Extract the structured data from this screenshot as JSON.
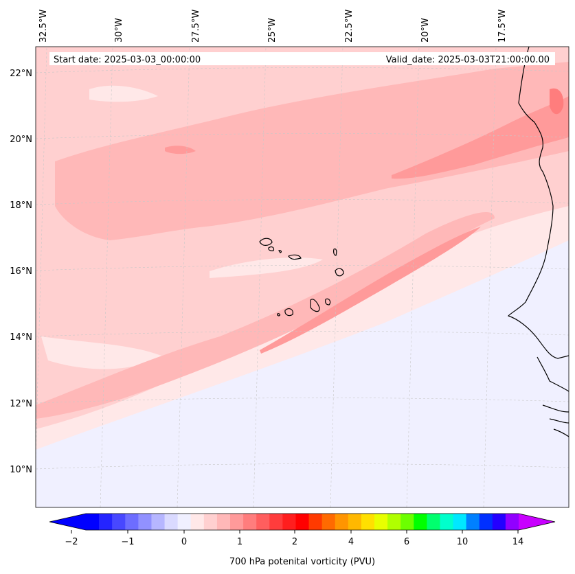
{
  "map": {
    "start_date": "Start date: 2025-03-03_00:00:00",
    "valid_date": "Valid_date: 2025-03-03T21:00:00.00",
    "lon_labels": [
      "32.5°W",
      "30°W",
      "27.5°W",
      "25°W",
      "22.5°W",
      "20°W",
      "17.5°W"
    ],
    "lat_labels": [
      "22°N",
      "20°N",
      "18°N",
      "16°N",
      "14°N",
      "12°N",
      "10°N"
    ]
  },
  "colorbar": {
    "label": "700 hPa potenital vorticity (PVU)",
    "tick_labels": [
      "−2",
      "−1",
      "0",
      "1",
      "2",
      "4",
      "6",
      "10",
      "14"
    ],
    "colors": [
      "#0000ff",
      "#2424ff",
      "#4848ff",
      "#6d6dff",
      "#9191ff",
      "#b6b6ff",
      "#dadaff",
      "#f0f0ff",
      "#ffe8e8",
      "#ffd0d0",
      "#ffb8b8",
      "#ff9a9a",
      "#ff7d7d",
      "#ff5e5e",
      "#ff3c3c",
      "#ff1e1e",
      "#ff0000",
      "#ff3a00",
      "#ff6a00",
      "#ff9500",
      "#ffb800",
      "#ffe000",
      "#e8ff00",
      "#b0ff00",
      "#6cff00",
      "#00ff00",
      "#00ff6e",
      "#00ffcc",
      "#00e8ff",
      "#0080ff",
      "#0030ff",
      "#2400ff",
      "#9100ff"
    ],
    "under_color": "#0000ff",
    "over_color": "#c800ff"
  },
  "map_colors": {
    "background": "#ffe8e8",
    "low": "#f0f0ff",
    "mid": "#ffd0d0",
    "high": "#ffb8b8",
    "higher": "#ff9a9a",
    "max": "#ff7d7d",
    "coast": "#000000"
  }
}
